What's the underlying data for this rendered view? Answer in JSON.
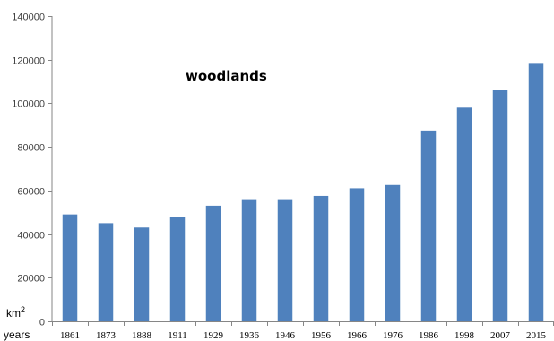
{
  "chart_data": {
    "type": "bar",
    "title": "woodlands",
    "xlabel": "years",
    "ylabel": "km",
    "ylabel_superscript": "2",
    "categories": [
      "1861",
      "1873",
      "1888",
      "1911",
      "1929",
      "1936",
      "1946",
      "1956",
      "1966",
      "1976",
      "1986",
      "1998",
      "2007",
      "2015"
    ],
    "values": [
      49000,
      45000,
      43000,
      48000,
      53000,
      56000,
      56000,
      57500,
      61000,
      62500,
      87500,
      98000,
      106000,
      118500
    ],
    "ylim": [
      0,
      140000
    ],
    "yticks": [
      "0",
      "20000",
      "40000",
      "60000",
      "80000",
      "100000",
      "120000",
      "140000"
    ],
    "grid": false,
    "legend": "none",
    "bar_color": "#4f81bd",
    "axis_color": "#868686"
  }
}
